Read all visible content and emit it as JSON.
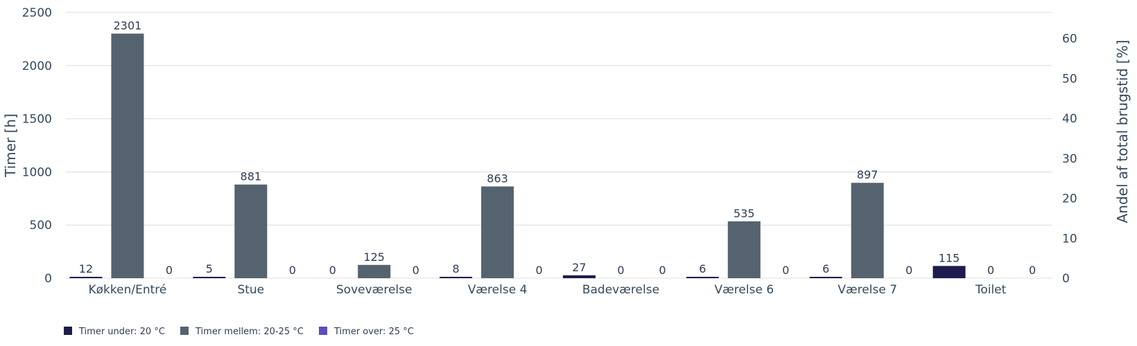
{
  "chart_data": {
    "type": "bar",
    "categories": [
      "Køkken/Entré",
      "Stue",
      "Soveværelse",
      "Værelse 4",
      "Badeværelse",
      "Værelse 6",
      "Værelse 7",
      "Toilet"
    ],
    "series": [
      {
        "name": "Timer under: 20 °C",
        "color": "#1e1b4e",
        "values": [
          12,
          5,
          0,
          8,
          27,
          6,
          6,
          115
        ]
      },
      {
        "name": "Timer mellem: 20-25 °C",
        "color": "#55626f",
        "values": [
          2301,
          881,
          125,
          863,
          0,
          535,
          897,
          0
        ]
      },
      {
        "name": "Timer over: 25 °C",
        "color": "#5b4dbf",
        "values": [
          0,
          0,
          0,
          0,
          0,
          0,
          0,
          0
        ]
      }
    ],
    "ylabel": "Timer [h]",
    "y2label": "Andel af total brugstid [%]",
    "ylim": [
      0,
      2500
    ],
    "yticks": [
      0,
      500,
      1000,
      1500,
      2000,
      2500
    ],
    "y2lim": [
      0,
      66.5
    ],
    "y2ticks": [
      0,
      10,
      20,
      30,
      40,
      50,
      60
    ],
    "grid": true,
    "legend": "bottom-left"
  }
}
